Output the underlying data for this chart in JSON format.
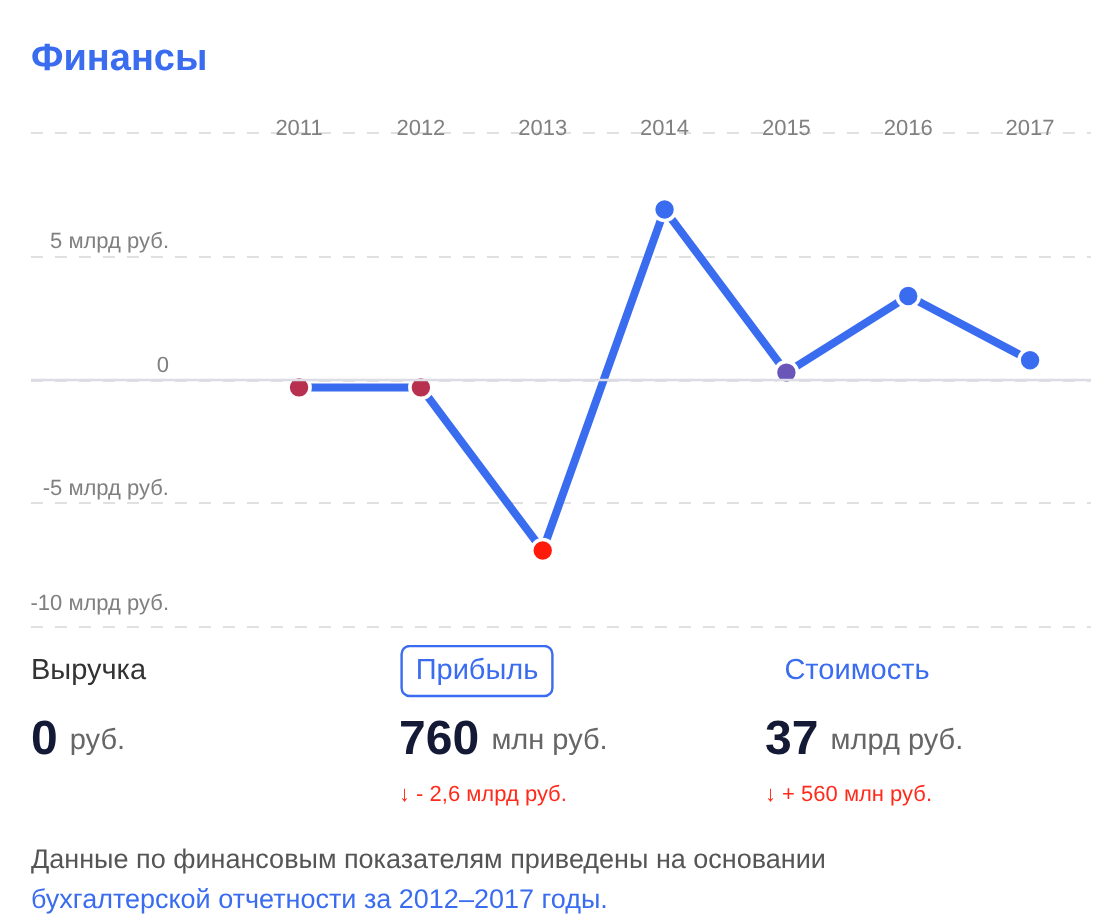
{
  "chart_data": {
    "type": "line",
    "title": "Финансы",
    "categories": [
      "2011",
      "2012",
      "2013",
      "2014",
      "2015",
      "2016",
      "2017"
    ],
    "series": [
      {
        "color": "#3a6cf0",
        "colors": [
          "#b8304f",
          "#b8304f",
          "#ff1a0a",
          "#3a6cf0",
          "#6a55b8",
          "#3a6cf0",
          "#3a6cf0"
        ],
        "values": [
          -0.3,
          -0.3,
          -6.9,
          6.9,
          0.3,
          3.4,
          0.8
        ]
      }
    ],
    "ylim": [
      -10,
      10
    ],
    "yticks": [
      {
        "value": 10,
        "label": null
      },
      {
        "value": 5,
        "label": "5 млрд руб."
      },
      0,
      {
        "value": -5,
        "label": "-5 млрд руб."
      },
      {
        "value": -10,
        "label": "-10 млрд руб."
      }
    ],
    "grid": "y",
    "marker": "circle",
    "line_style": "solid",
    "ref_lines": [
      {
        "axis": "y",
        "value": 0,
        "color": "#dcdce6",
        "line_style": "solid"
      }
    ],
    "annotations": [
      "Выручка",
      "0 руб.",
      "Прибыль",
      "760 млн руб.",
      "↓ - 2,6 млрд руб.",
      "Стоимость",
      "37 млрд руб.",
      "↓ + 560 млн руб.",
      "Данные по финансовым показателям приведены на основании",
      "бухгалтерской отчетности за 2012–2017 годы."
    ]
  }
}
